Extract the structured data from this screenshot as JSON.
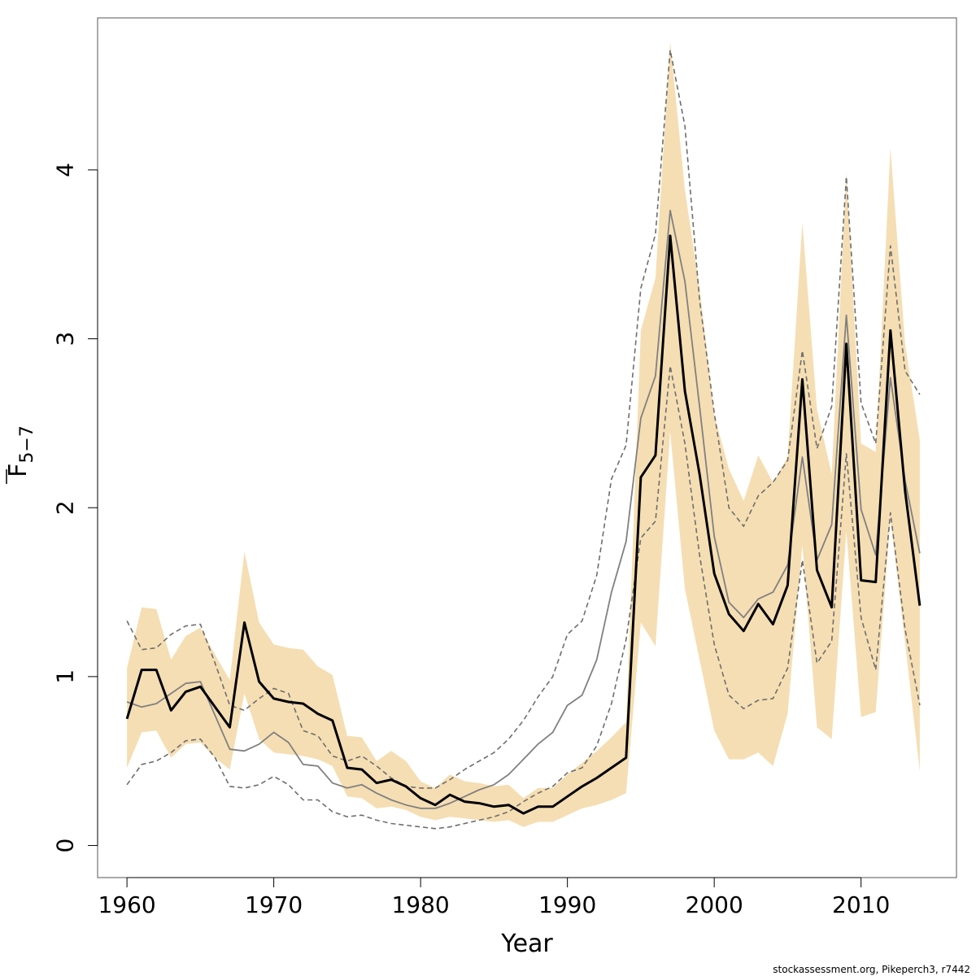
{
  "chart_data": {
    "type": "line",
    "xlabel": "Year",
    "ylabel_main": "F",
    "ylabel_sub": "5−7",
    "caption": "stockassessment.org, Pikeperch3, r7442",
    "xlim": [
      1958,
      2016.5
    ],
    "ylim": [
      -0.19,
      4.9
    ],
    "x_ticks": [
      1960,
      1970,
      1980,
      1990,
      2000,
      2010
    ],
    "y_ticks": [
      0,
      1,
      2,
      3,
      4
    ],
    "x_tick_labels": [
      "1960",
      "1970",
      "1980",
      "1990",
      "2000",
      "2010"
    ],
    "y_tick_labels": [
      "0",
      "1",
      "2",
      "3",
      "4"
    ],
    "colors": {
      "band": "#f5deb3",
      "estimate": "#000000",
      "previous": "#808080",
      "previous_ci": "#6e6e6e",
      "frame": "#555555"
    },
    "x": [
      1960,
      1961,
      1962,
      1963,
      1964,
      1965,
      1966,
      1967,
      1968,
      1969,
      1970,
      1971,
      1972,
      1973,
      1974,
      1975,
      1976,
      1977,
      1978,
      1979,
      1980,
      1981,
      1982,
      1983,
      1984,
      1985,
      1986,
      1987,
      1988,
      1989,
      1990,
      1991,
      1992,
      1993,
      1994,
      1995,
      1996,
      1997,
      1998,
      1999,
      2000,
      2001,
      2002,
      2003,
      2004,
      2005,
      2006,
      2007,
      2008,
      2009,
      2010,
      2011,
      2012,
      2013,
      2014
    ],
    "series": [
      {
        "role": "estimate",
        "values": [
          0.75,
          1.04,
          1.04,
          0.8,
          0.91,
          0.94,
          0.82,
          0.7,
          1.32,
          0.97,
          0.87,
          0.85,
          0.84,
          0.78,
          0.74,
          0.46,
          0.45,
          0.37,
          0.39,
          0.35,
          0.28,
          0.24,
          0.3,
          0.26,
          0.25,
          0.23,
          0.24,
          0.19,
          0.23,
          0.23,
          0.29,
          0.35,
          0.4,
          0.46,
          0.52,
          2.18,
          2.31,
          3.61,
          2.69,
          2.2,
          1.61,
          1.37,
          1.27,
          1.43,
          1.31,
          1.54,
          2.76,
          1.63,
          1.41,
          2.97,
          1.57,
          1.56,
          3.05,
          2.1,
          1.42
        ]
      },
      {
        "role": "estimate_ci_lower",
        "values": [
          0.46,
          0.67,
          0.68,
          0.52,
          0.6,
          0.61,
          0.52,
          0.45,
          0.9,
          0.63,
          0.55,
          0.54,
          0.53,
          0.51,
          0.47,
          0.29,
          0.28,
          0.22,
          0.23,
          0.21,
          0.17,
          0.15,
          0.17,
          0.16,
          0.15,
          0.14,
          0.15,
          0.11,
          0.14,
          0.14,
          0.18,
          0.22,
          0.24,
          0.27,
          0.31,
          1.32,
          1.18,
          2.45,
          1.52,
          1.1,
          0.68,
          0.51,
          0.51,
          0.55,
          0.47,
          0.78,
          1.78,
          0.7,
          0.63,
          1.86,
          0.76,
          0.79,
          1.94,
          1.2,
          0.44
        ]
      },
      {
        "role": "estimate_ci_upper",
        "values": [
          1.05,
          1.41,
          1.4,
          1.1,
          1.24,
          1.29,
          1.13,
          0.98,
          1.74,
          1.32,
          1.19,
          1.17,
          1.16,
          1.06,
          1.01,
          0.65,
          0.64,
          0.5,
          0.56,
          0.5,
          0.38,
          0.34,
          0.42,
          0.38,
          0.37,
          0.35,
          0.36,
          0.28,
          0.34,
          0.34,
          0.42,
          0.49,
          0.56,
          0.64,
          0.73,
          3.05,
          3.36,
          4.76,
          3.88,
          3.3,
          2.55,
          2.23,
          2.04,
          2.31,
          2.15,
          2.3,
          3.69,
          2.58,
          2.2,
          3.99,
          2.38,
          2.33,
          4.13,
          2.97,
          2.4
        ]
      },
      {
        "role": "previous",
        "values": [
          0.85,
          0.82,
          0.84,
          0.9,
          0.96,
          0.97,
          0.77,
          0.57,
          0.56,
          0.6,
          0.67,
          0.61,
          0.48,
          0.47,
          0.37,
          0.34,
          0.36,
          0.31,
          0.27,
          0.24,
          0.22,
          0.22,
          0.25,
          0.29,
          0.33,
          0.36,
          0.42,
          0.51,
          0.6,
          0.67,
          0.83,
          0.89,
          1.1,
          1.5,
          1.8,
          2.53,
          2.78,
          3.76,
          3.34,
          2.6,
          1.83,
          1.44,
          1.35,
          1.46,
          1.5,
          1.66,
          2.3,
          1.69,
          1.9,
          3.14,
          1.99,
          1.72,
          2.77,
          2.16,
          1.73
        ]
      },
      {
        "role": "previous_ci_lower",
        "values": [
          0.36,
          0.48,
          0.5,
          0.55,
          0.62,
          0.63,
          0.52,
          0.35,
          0.34,
          0.36,
          0.41,
          0.36,
          0.27,
          0.27,
          0.2,
          0.17,
          0.18,
          0.15,
          0.13,
          0.12,
          0.11,
          0.1,
          0.11,
          0.13,
          0.15,
          0.17,
          0.2,
          0.26,
          0.31,
          0.35,
          0.43,
          0.46,
          0.59,
          0.84,
          1.22,
          1.82,
          1.92,
          2.84,
          2.38,
          1.72,
          1.19,
          0.89,
          0.81,
          0.86,
          0.87,
          1.05,
          1.69,
          1.08,
          1.21,
          2.32,
          1.35,
          1.04,
          1.97,
          1.28,
          0.83
        ]
      },
      {
        "role": "previous_ci_upper",
        "values": [
          1.33,
          1.16,
          1.17,
          1.25,
          1.3,
          1.31,
          1.08,
          0.83,
          0.8,
          0.87,
          0.93,
          0.9,
          0.68,
          0.65,
          0.53,
          0.5,
          0.53,
          0.47,
          0.4,
          0.35,
          0.34,
          0.34,
          0.39,
          0.45,
          0.5,
          0.55,
          0.63,
          0.74,
          0.88,
          1.0,
          1.25,
          1.33,
          1.6,
          2.17,
          2.37,
          3.3,
          3.62,
          4.71,
          4.26,
          3.23,
          2.56,
          2.0,
          1.89,
          2.07,
          2.15,
          2.28,
          2.93,
          2.35,
          2.6,
          3.96,
          2.62,
          2.38,
          3.55,
          2.81,
          2.67
        ]
      }
    ]
  }
}
